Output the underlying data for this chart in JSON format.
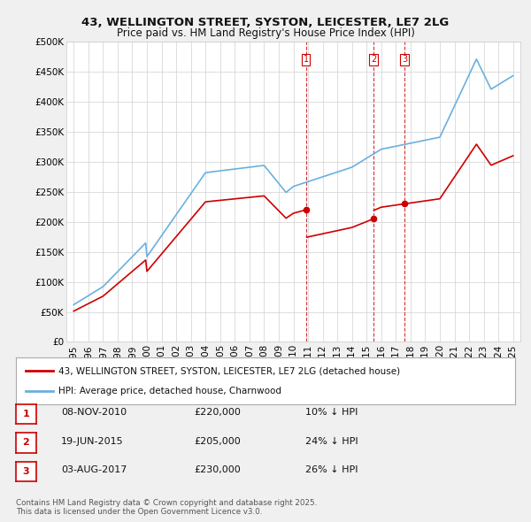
{
  "title": "43, WELLINGTON STREET, SYSTON, LEICESTER, LE7 2LG",
  "subtitle": "Price paid vs. HM Land Registry's House Price Index (HPI)",
  "legend_entry1": "43, WELLINGTON STREET, SYSTON, LEICESTER, LE7 2LG (detached house)",
  "legend_entry2": "HPI: Average price, detached house, Charnwood",
  "hpi_color": "#6ab0de",
  "sold_color": "#cc0000",
  "vline_color": "#cc0000",
  "background_color": "#f0f0f0",
  "plot_bg_color": "#ffffff",
  "ylim": [
    0,
    500000
  ],
  "yticks": [
    0,
    50000,
    100000,
    150000,
    200000,
    250000,
    300000,
    350000,
    400000,
    450000,
    500000
  ],
  "ytick_labels": [
    "£0",
    "£50K",
    "£100K",
    "£150K",
    "£200K",
    "£250K",
    "£300K",
    "£350K",
    "£400K",
    "£450K",
    "£500K"
  ],
  "xlim_start": 1994.5,
  "xlim_end": 2025.5,
  "sold_dates": [
    2010.856,
    2015.464,
    2017.589
  ],
  "sold_prices": [
    220000,
    205000,
    230000
  ],
  "sold_labels": [
    "1",
    "2",
    "3"
  ],
  "table_entries": [
    {
      "num": "1",
      "date": "08-NOV-2010",
      "price": "£220,000",
      "hpi": "10% ↓ HPI"
    },
    {
      "num": "2",
      "date": "19-JUN-2015",
      "price": "£205,000",
      "hpi": "24% ↓ HPI"
    },
    {
      "num": "3",
      "date": "03-AUG-2017",
      "price": "£230,000",
      "hpi": "26% ↓ HPI"
    }
  ],
  "footnote": "Contains HM Land Registry data © Crown copyright and database right 2025.\nThis data is licensed under the Open Government Licence v3.0.",
  "xtick_years": [
    1995,
    1996,
    1997,
    1998,
    1999,
    2000,
    2001,
    2002,
    2003,
    2004,
    2005,
    2006,
    2007,
    2008,
    2009,
    2010,
    2011,
    2012,
    2013,
    2014,
    2015,
    2016,
    2017,
    2018,
    2019,
    2020,
    2021,
    2022,
    2023,
    2024,
    2025
  ]
}
